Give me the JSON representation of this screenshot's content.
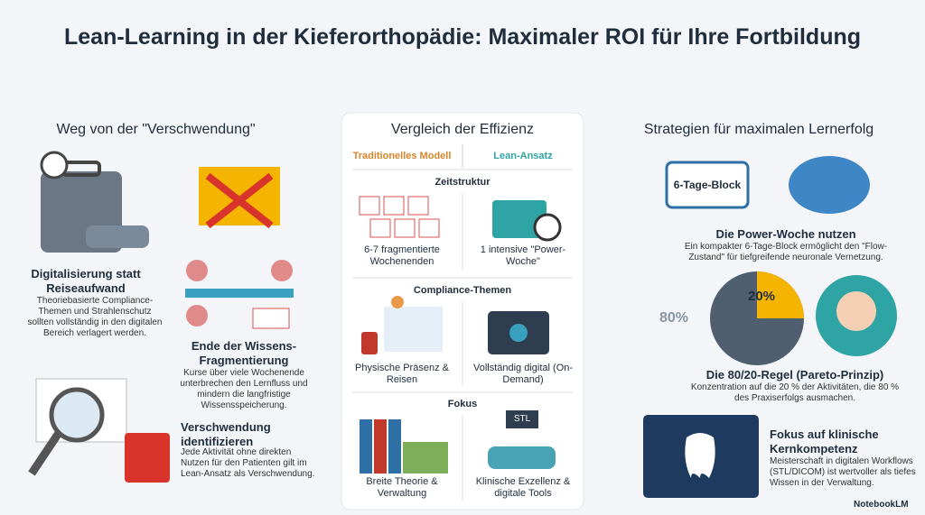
{
  "title": "Lean-Learning in der Kieferorthopädie: Maximaler ROI für Ihre Fortbildung",
  "left": {
    "heading": "Weg von der \"Verschwendung\"",
    "items": [
      {
        "title": "Digitalisierung statt Reiseaufwand",
        "text": "Theoriebasierte Compliance-Themen und Strahlenschutz sollten vollständig in den digitalen Bereich verlagert werden."
      },
      {
        "title": "Ende der Wissens-Fragmentierung",
        "text": "Kurse über viele Wochenende unterbrechen den Lernfluss und mindern die langfristige Wissensspeicherung."
      },
      {
        "title": "Verschwendung identifizieren",
        "text": "Jede Aktivität ohne direkten Nutzen für den Patienten gilt im Lean-Ansatz als Verschwendung."
      }
    ]
  },
  "middle": {
    "heading": "Vergleich der Effizienz",
    "col_left": "Traditionelles Modell",
    "col_right": "Lean-Ansatz",
    "rows": [
      {
        "label": "Zeitstruktur",
        "left": "6-7 fragmentierte Wochenenden",
        "right": "1 intensive \"Power-Woche\""
      },
      {
        "label": "Compliance-Themen",
        "left": "Physische Präsenz & Reisen",
        "right": "Vollständig digital (On-Demand)"
      },
      {
        "label": "Fokus",
        "left": "Breite Theorie & Verwaltung",
        "right": "Klinische Exzellenz & digitale Tools",
        "icon_label": "STL"
      }
    ]
  },
  "right": {
    "heading": "Strategien für maximalen Lernerfolg",
    "items": [
      {
        "title": "Die Power-Woche nutzen",
        "text": "Ein kompakter 6-Tage-Block ermöglicht den \"Flow-Zustand\" für tiefgreifende neuronale Vernetzung.",
        "icon_label": "6-Tage-Block"
      },
      {
        "title": "Die 80/20-Regel (Pareto-Prinzip)",
        "text": "Konzentration auf die 20 % der Aktivitäten, die 80 % des Praxiserfolgs ausmachen.",
        "label_large": "80%",
        "label_small": "20%"
      },
      {
        "title": "Fokus auf klinische Kernkompetenz",
        "text": "Meisterschaft in digitalen Workflows (STL/DICOM) ist wertvoller als tiefes Wissen in der Verwaltung."
      }
    ]
  },
  "footer": "NotebookLM"
}
